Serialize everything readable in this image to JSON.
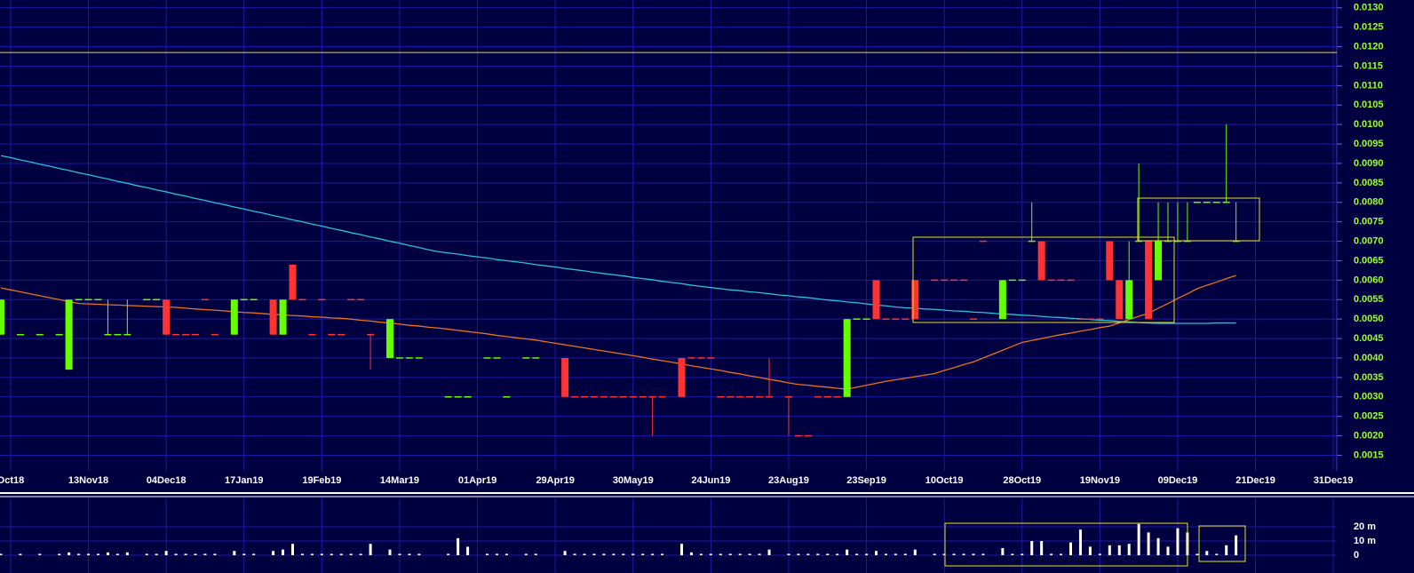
{
  "chart_data": {
    "type": "candlestick",
    "categories": [
      null,
      "Oct18",
      null,
      null,
      null,
      null,
      null,
      null,
      null,
      "13Nov18",
      null,
      null,
      null,
      null,
      null,
      null,
      null,
      "04Dec18",
      null,
      null,
      null,
      null,
      null,
      null,
      null,
      "17Jan19",
      null,
      null,
      null,
      null,
      null,
      null,
      null,
      "19Feb19",
      null,
      null,
      null,
      null,
      null,
      null,
      null,
      "14Mar19",
      null,
      null,
      null,
      null,
      null,
      null,
      null,
      "01Apr19",
      null,
      null,
      null,
      null,
      null,
      null,
      null,
      "29Apr19",
      null,
      null,
      null,
      null,
      null,
      null,
      null,
      "30May19",
      null,
      null,
      null,
      null,
      null,
      null,
      null,
      "24Jun19",
      null,
      null,
      null,
      null,
      null,
      null,
      null,
      "23Aug19",
      null,
      null,
      null,
      null,
      null,
      null,
      null,
      "23Sep19",
      null,
      null,
      null,
      null,
      null,
      null,
      null,
      "10Oct19",
      null,
      null,
      null,
      null,
      null,
      null,
      null,
      "28Oct19",
      null,
      null,
      null,
      null,
      null,
      null,
      null,
      "19Nov19",
      null,
      null,
      null,
      null,
      null,
      null,
      null,
      "09Dec19",
      null,
      null,
      null,
      null,
      null,
      null,
      null,
      "21Dec19",
      null,
      null,
      null,
      null,
      null,
      null,
      null,
      "31Dec19"
    ],
    "ohlc": [
      [
        0.0046,
        0.0055,
        0.0046,
        0.0055
      ],
      null,
      [
        0.0046,
        0.0046,
        0.0046,
        0.0046
      ],
      null,
      [
        0.0046,
        0.0046,
        0.0046,
        0.0046
      ],
      null,
      [
        0.0046,
        0.0046,
        0.0046,
        0.0046
      ],
      [
        0.0037,
        0.0055,
        0.0037,
        0.0055
      ],
      [
        0.0055,
        0.0055,
        0.0055,
        0.0055
      ],
      [
        0.0055,
        0.0055,
        0.0055,
        0.0055
      ],
      [
        0.0055,
        0.0055,
        0.0055,
        0.0055
      ],
      [
        0.0046,
        0.0055,
        0.0046,
        0.0046
      ],
      [
        0.0046,
        0.0046,
        0.0046,
        0.0046
      ],
      [
        0.0046,
        0.0055,
        0.0046,
        0.0046
      ],
      null,
      [
        0.0055,
        0.0055,
        0.0055,
        0.0055
      ],
      [
        0.0055,
        0.0055,
        0.0055,
        0.0055
      ],
      [
        0.0055,
        0.0055,
        0.0046,
        0.0046
      ],
      [
        0.0046,
        0.0046,
        0.0046,
        0.0046
      ],
      [
        0.0046,
        0.0046,
        0.0046,
        0.0046
      ],
      [
        0.0046,
        0.0046,
        0.0046,
        0.0046
      ],
      [
        0.0055,
        0.0055,
        0.0055,
        0.0055
      ],
      [
        0.0046,
        0.0046,
        0.0046,
        0.0046
      ],
      null,
      [
        0.0046,
        0.0055,
        0.0046,
        0.0055
      ],
      [
        0.0055,
        0.0055,
        0.0055,
        0.0055
      ],
      [
        0.0055,
        0.0055,
        0.0055,
        0.0055
      ],
      null,
      [
        0.0055,
        0.0055,
        0.0046,
        0.0046
      ],
      [
        0.0046,
        0.0055,
        0.0046,
        0.0055
      ],
      [
        0.0064,
        0.0064,
        0.0055,
        0.0055
      ],
      [
        0.0055,
        0.0055,
        0.0055,
        0.0055
      ],
      [
        0.0046,
        0.0046,
        0.0046,
        0.0046
      ],
      [
        0.0055,
        0.0055,
        0.0055,
        0.0055
      ],
      [
        0.0046,
        0.0046,
        0.0046,
        0.0046
      ],
      [
        0.0046,
        0.0046,
        0.0046,
        0.0046
      ],
      [
        0.0055,
        0.0055,
        0.0055,
        0.0055
      ],
      [
        0.0055,
        0.0055,
        0.0055,
        0.0055
      ],
      [
        0.0046,
        0.0046,
        0.0037,
        0.0046
      ],
      null,
      [
        0.004,
        0.005,
        0.004,
        0.005
      ],
      [
        0.004,
        0.004,
        0.004,
        0.004
      ],
      [
        0.004,
        0.004,
        0.004,
        0.004
      ],
      [
        0.004,
        0.004,
        0.004,
        0.004
      ],
      null,
      null,
      [
        0.003,
        0.003,
        0.003,
        0.003
      ],
      [
        0.003,
        0.003,
        0.003,
        0.003
      ],
      [
        0.003,
        0.003,
        0.003,
        0.003
      ],
      null,
      [
        0.004,
        0.004,
        0.004,
        0.004
      ],
      [
        0.004,
        0.004,
        0.004,
        0.004
      ],
      [
        0.003,
        0.003,
        0.003,
        0.003
      ],
      null,
      [
        0.004,
        0.004,
        0.004,
        0.004
      ],
      [
        0.004,
        0.004,
        0.004,
        0.004
      ],
      null,
      null,
      [
        0.004,
        0.004,
        0.003,
        0.003
      ],
      [
        0.003,
        0.003,
        0.003,
        0.003
      ],
      [
        0.003,
        0.003,
        0.003,
        0.003
      ],
      [
        0.003,
        0.003,
        0.003,
        0.003
      ],
      [
        0.003,
        0.003,
        0.003,
        0.003
      ],
      [
        0.003,
        0.003,
        0.003,
        0.003
      ],
      [
        0.003,
        0.003,
        0.003,
        0.003
      ],
      [
        0.003,
        0.003,
        0.003,
        0.003
      ],
      [
        0.003,
        0.003,
        0.003,
        0.003
      ],
      [
        0.003,
        0.003,
        0.002,
        0.003
      ],
      [
        0.003,
        0.003,
        0.003,
        0.003
      ],
      null,
      [
        0.004,
        0.004,
        0.003,
        0.003
      ],
      [
        0.004,
        0.004,
        0.004,
        0.004
      ],
      [
        0.004,
        0.004,
        0.004,
        0.004
      ],
      [
        0.004,
        0.004,
        0.004,
        0.004
      ],
      [
        0.003,
        0.003,
        0.003,
        0.003
      ],
      [
        0.003,
        0.003,
        0.003,
        0.003
      ],
      [
        0.003,
        0.003,
        0.003,
        0.003
      ],
      [
        0.003,
        0.003,
        0.003,
        0.003
      ],
      [
        0.003,
        0.003,
        0.003,
        0.003
      ],
      [
        0.003,
        0.004,
        0.003,
        0.003
      ],
      null,
      [
        0.003,
        0.003,
        0.002,
        0.003
      ],
      [
        0.002,
        0.002,
        0.002,
        0.002
      ],
      [
        0.002,
        0.002,
        0.002,
        0.002
      ],
      [
        0.003,
        0.003,
        0.003,
        0.003
      ],
      [
        0.003,
        0.003,
        0.003,
        0.003
      ],
      [
        0.003,
        0.003,
        0.003,
        0.003
      ],
      [
        0.003,
        0.005,
        0.003,
        0.005
      ],
      [
        0.005,
        0.005,
        0.005,
        0.005
      ],
      [
        0.005,
        0.005,
        0.005,
        0.005
      ],
      [
        0.006,
        0.006,
        0.005,
        0.005
      ],
      [
        0.005,
        0.005,
        0.005,
        0.005
      ],
      [
        0.005,
        0.005,
        0.005,
        0.005
      ],
      [
        0.005,
        0.005,
        0.005,
        0.005
      ],
      [
        0.006,
        0.006,
        0.005,
        0.005
      ],
      null,
      [
        0.006,
        0.006,
        0.006,
        0.006
      ],
      [
        0.006,
        0.006,
        0.006,
        0.006
      ],
      [
        0.006,
        0.006,
        0.006,
        0.006
      ],
      [
        0.006,
        0.006,
        0.006,
        0.006
      ],
      [
        0.005,
        0.005,
        0.005,
        0.005
      ],
      [
        0.007,
        0.007,
        0.007,
        0.007
      ],
      null,
      [
        0.005,
        0.006,
        0.005,
        0.006
      ],
      [
        0.006,
        0.006,
        0.006,
        0.006
      ],
      [
        0.006,
        0.006,
        0.006,
        0.006
      ],
      [
        0.007,
        0.008,
        0.007,
        0.007
      ],
      [
        0.007,
        0.007,
        0.006,
        0.006
      ],
      [
        0.006,
        0.006,
        0.006,
        0.006
      ],
      [
        0.006,
        0.006,
        0.006,
        0.006
      ],
      [
        0.006,
        0.006,
        0.006,
        0.006
      ],
      [
        0.005,
        0.005,
        0.005,
        0.005
      ],
      [
        0.005,
        0.005,
        0.005,
        0.005
      ],
      [
        0.005,
        0.005,
        0.005,
        0.005
      ],
      [
        0.007,
        0.007,
        0.006,
        0.006
      ],
      [
        0.006,
        0.006,
        0.005,
        0.005
      ],
      [
        0.005,
        0.007,
        0.005,
        0.006
      ],
      [
        0.007,
        0.009,
        0.007,
        0.007
      ],
      [
        0.007,
        0.007,
        0.005,
        0.005
      ],
      [
        0.006,
        0.008,
        0.006,
        0.007
      ],
      [
        0.007,
        0.008,
        0.007,
        0.007
      ],
      [
        0.007,
        0.008,
        0.007,
        0.007
      ],
      [
        0.007,
        0.008,
        0.007,
        0.007
      ],
      [
        0.008,
        0.008,
        0.008,
        0.008
      ],
      [
        0.008,
        0.008,
        0.008,
        0.008
      ],
      [
        0.008,
        0.008,
        0.008,
        0.008
      ],
      [
        0.008,
        0.01,
        0.008,
        0.008
      ],
      [
        0.007,
        0.008,
        0.007,
        0.007
      ],
      null,
      null,
      null,
      null,
      null,
      null,
      null,
      null,
      null,
      null
    ],
    "volume": [
      1,
      null,
      1,
      null,
      1,
      null,
      1,
      2,
      1,
      1,
      1,
      2,
      1,
      2,
      null,
      1,
      1,
      3,
      1,
      1,
      1,
      1,
      1,
      null,
      3,
      1,
      1,
      null,
      3,
      4,
      8,
      1,
      1,
      1,
      1,
      1,
      1,
      1,
      8,
      null,
      4,
      1,
      1,
      1,
      null,
      null,
      1,
      12,
      6,
      null,
      1,
      1,
      1,
      null,
      1,
      1,
      null,
      null,
      3,
      1,
      1,
      1,
      1,
      1,
      1,
      1,
      1,
      1,
      1,
      null,
      8,
      2,
      1,
      1,
      1,
      1,
      1,
      1,
      1,
      4,
      null,
      1,
      1,
      1,
      1,
      1,
      1,
      4,
      1,
      1,
      3,
      1,
      1,
      1,
      4,
      null,
      1,
      1,
      1,
      1,
      1,
      1,
      null,
      5,
      1,
      1,
      10,
      10,
      1,
      1,
      9,
      18,
      6,
      1,
      7,
      7,
      8,
      22,
      16,
      12,
      6,
      19,
      16,
      1,
      3,
      1,
      7,
      14,
      null,
      null,
      null,
      null,
      null,
      null,
      null,
      null,
      null,
      null
    ],
    "series": [
      {
        "color": "#25c4d6",
        "values": [
          0.0092,
          0.00915,
          0.00909,
          0.00904,
          0.00898,
          0.00893,
          0.00887,
          0.00882,
          0.00876,
          0.00871,
          0.00865,
          0.0086,
          0.00854,
          0.00849,
          0.00843,
          0.00838,
          0.00832,
          0.00827,
          0.00821,
          0.00816,
          0.0081,
          0.00805,
          0.00799,
          0.00794,
          0.00788,
          0.00783,
          0.00777,
          0.00772,
          0.00766,
          0.00761,
          0.00755,
          0.0075,
          0.00744,
          0.00739,
          0.00733,
          0.00728,
          0.00722,
          0.00717,
          0.00711,
          0.00706,
          0.007,
          0.00695,
          0.00689,
          0.00684,
          0.00678,
          0.00673,
          0.0067,
          0.00667,
          0.00663,
          0.0066,
          0.00657,
          0.00653,
          0.0065,
          0.00647,
          0.00644,
          0.0064,
          0.00637,
          0.00634,
          0.0063,
          0.00627,
          0.00624,
          0.0062,
          0.00617,
          0.00614,
          0.00611,
          0.00607,
          0.00604,
          0.00601,
          0.00597,
          0.00594,
          0.00591,
          0.00587,
          0.00584,
          0.00581,
          0.00578,
          0.00575,
          0.00573,
          0.0057,
          0.00568,
          0.00565,
          0.00562,
          0.0056,
          0.00557,
          0.00555,
          0.00552,
          0.00549,
          0.00547,
          0.00544,
          0.00542,
          0.00539,
          0.00536,
          0.00534,
          0.00531,
          0.00529,
          0.00528,
          0.00526,
          0.00525,
          0.00523,
          0.00521,
          0.0052,
          0.00518,
          0.00517,
          0.00515,
          0.00513,
          0.00512,
          0.0051,
          0.00509,
          0.00507,
          0.00505,
          0.00504,
          0.00502,
          0.00501,
          0.00499,
          0.00497,
          0.00496,
          0.00494,
          0.00493,
          0.00491,
          0.0049,
          0.00489,
          0.00489,
          0.00489,
          0.00489,
          0.00489,
          0.00489,
          0.0049,
          0.0049,
          0.0049,
          null,
          null,
          null,
          null,
          null,
          null,
          null,
          null,
          null,
          null
        ]
      },
      {
        "color": "#e8731e",
        "values": [
          0.0058,
          0.00575,
          0.0057,
          0.00565,
          0.0056,
          0.00555,
          0.0055,
          0.00545,
          0.0054,
          0.00539,
          0.00538,
          0.00537,
          0.00536,
          0.00535,
          0.00534,
          0.00533,
          0.00532,
          0.00531,
          0.0053,
          0.00528,
          0.00526,
          0.00524,
          0.00523,
          0.00521,
          0.00519,
          0.00517,
          0.00516,
          0.00514,
          0.00512,
          0.00511,
          0.00509,
          0.00508,
          0.00506,
          0.00505,
          0.00503,
          0.00502,
          0.005,
          0.00497,
          0.00495,
          0.00492,
          0.0049,
          0.00487,
          0.00484,
          0.00482,
          0.00479,
          0.00477,
          0.00474,
          0.00471,
          0.00468,
          0.00465,
          0.00462,
          0.00458,
          0.00455,
          0.00452,
          0.00449,
          0.00446,
          0.00442,
          0.00438,
          0.00434,
          0.0043,
          0.00426,
          0.00422,
          0.00418,
          0.00414,
          0.0041,
          0.00406,
          0.00402,
          0.00397,
          0.00393,
          0.00389,
          0.00385,
          0.0038,
          0.00376,
          0.00372,
          0.00368,
          0.00363,
          0.00359,
          0.00354,
          0.0035,
          0.00345,
          0.00341,
          0.00336,
          0.00332,
          0.0033,
          0.00327,
          0.00325,
          0.00322,
          0.0032,
          0.00325,
          0.0033,
          0.00335,
          0.0034,
          0.00344,
          0.00348,
          0.00352,
          0.00356,
          0.0036,
          0.00368,
          0.00375,
          0.00383,
          0.0039,
          0.004,
          0.0041,
          0.0042,
          0.0043,
          0.0044,
          0.00445,
          0.0045,
          0.00455,
          0.0046,
          0.00464,
          0.00469,
          0.00473,
          0.00478,
          0.00482,
          0.0049,
          0.00499,
          0.00507,
          0.00515,
          0.00528,
          0.0054,
          0.00553,
          0.00565,
          0.00578,
          0.00587,
          0.00595,
          0.00604,
          0.00612,
          null,
          null,
          null,
          null,
          null,
          null,
          null,
          null,
          null,
          null
        ]
      }
    ],
    "reference_line": 0.01185,
    "reference_color": "#e8e020",
    "up_color": "#66ff00",
    "down_color": "#ff3333",
    "volume_color": "#ffffff",
    "ylim": [
      0.0011,
      0.0132
    ],
    "yticks": [
      0.0015,
      {
        "value": 0.002,
        "label": "0.0020"
      },
      0.0025,
      {
        "value": 0.003,
        "label": "0.0030"
      },
      0.0035,
      {
        "value": 0.004,
        "label": "0.0040"
      },
      0.0045,
      {
        "value": 0.005,
        "label": "0.0050"
      },
      0.0055,
      {
        "value": 0.006,
        "label": "0.0060"
      },
      0.0065,
      {
        "value": 0.007,
        "label": "0.0070"
      },
      0.0075,
      {
        "value": 0.008,
        "label": "0.0080"
      },
      0.0085,
      {
        "value": 0.009,
        "label": "0.0090"
      },
      0.0095,
      {
        "value": 0.01,
        "label": "0.0100"
      },
      0.0105,
      {
        "value": 0.011,
        "label": "0.0110"
      },
      0.0115,
      {
        "value": 0.012,
        "label": "0.0120"
      },
      0.0125,
      {
        "value": 0.013,
        "label": "0.0130"
      }
    ],
    "volume_ylim": [
      0,
      40
    ],
    "volume_yticks": [
      0,
      {
        "value": 10,
        "label": "10 m"
      },
      {
        "value": 20,
        "label": "20 m"
      }
    ],
    "grid": true
  }
}
